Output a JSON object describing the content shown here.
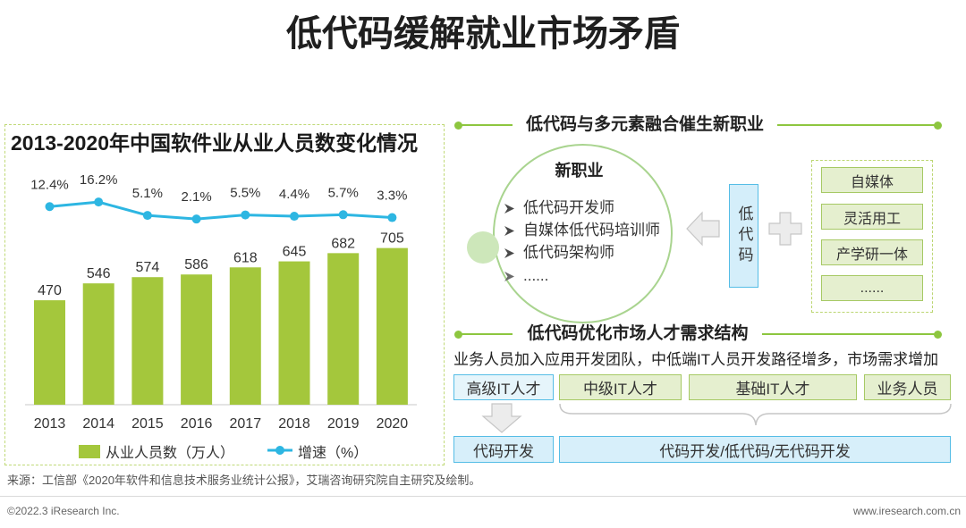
{
  "title": "低代码缓解就业市场矛盾",
  "chart_data": {
    "type": "bar",
    "title": "2013-2020年中国软件业从业人员数变化情况",
    "categories": [
      "2013",
      "2014",
      "2015",
      "2016",
      "2017",
      "2018",
      "2019",
      "2020"
    ],
    "series": [
      {
        "name": "从业人员数（万人）",
        "type": "bar",
        "values": [
          470,
          546,
          574,
          586,
          618,
          645,
          682,
          705
        ],
        "color": "#a4c73c"
      },
      {
        "name": "增速（%）",
        "type": "line",
        "values": [
          12.4,
          16.2,
          5.1,
          2.1,
          5.5,
          4.4,
          5.7,
          3.3
        ],
        "labels": [
          "12.4%",
          "16.2%",
          "5.1%",
          "2.1%",
          "5.5%",
          "4.4%",
          "5.7%",
          "3.3%"
        ],
        "color": "#2db6e2"
      }
    ],
    "ylim": [
      0,
      800
    ],
    "grid": false,
    "legend": "bottom"
  },
  "job_fusion": {
    "heading": "低代码与多元素融合催生新职业",
    "new_jobs_title": "新职业",
    "new_jobs": [
      "低代码开发师",
      "自媒体低代码培训师",
      "低代码架构师",
      "......"
    ],
    "lowcode_label": "低代码",
    "elements": [
      "自媒体",
      "灵活用工",
      "产学研一体",
      "......"
    ]
  },
  "talent_structure": {
    "heading": "低代码优化市场人才需求结构",
    "summary": "业务人员加入应用开发团队，中低端IT人员开发路径增多，市场需求增加",
    "levels": [
      "高级IT人才",
      "中级IT人才",
      "基础IT人才",
      "业务人员"
    ],
    "dev_modes": [
      "代码开发",
      "代码开发/低代码/无代码开发"
    ]
  },
  "source": "来源：工信部《2020年软件和信息技术服务业统计公报》，艾瑞咨询研究院自主研究及绘制。",
  "footer": {
    "copyright": "©2022.3 iResearch Inc.",
    "website": "www.iresearch.com.cn"
  },
  "colors": {
    "accent_green": "#8dc63f",
    "box_green_fill": "#e5efcf",
    "box_green_border": "#a6c964",
    "box_cyan_fill": "#d7effa",
    "box_cyan_border": "#55bde6",
    "arrow_gray": "#ececec"
  },
  "icons": {
    "bullet": "bullet-arrow-icon",
    "arrow_left": "arrow-left-icon",
    "plus": "plus-icon",
    "arrow_down": "arrow-down-icon",
    "brace": "brace-icon"
  }
}
